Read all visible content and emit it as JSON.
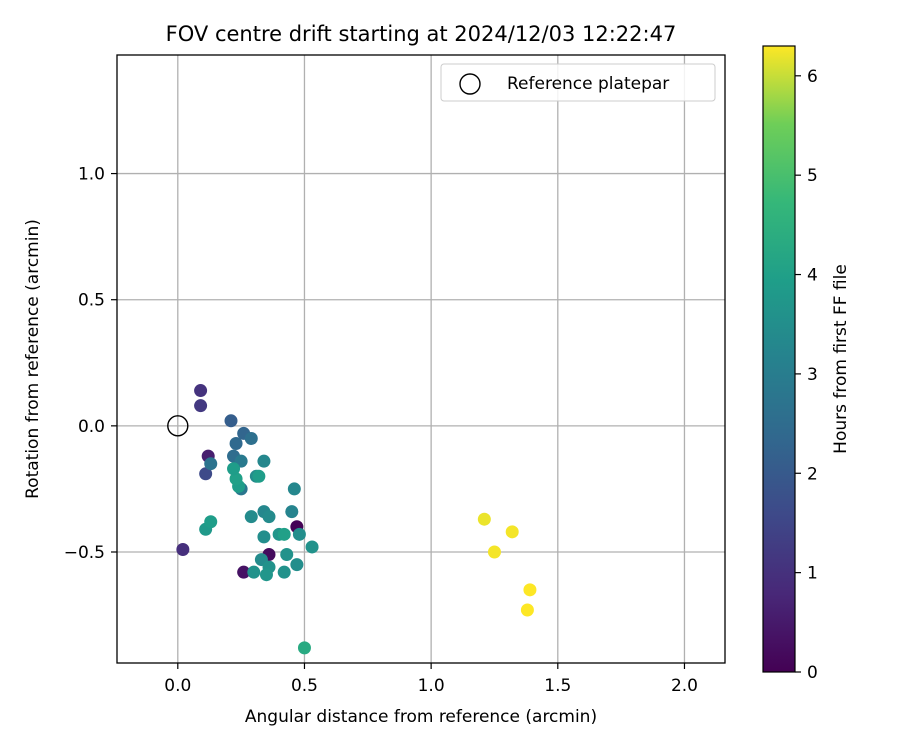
{
  "chart_data": {
    "type": "scatter",
    "title": "FOV centre drift starting at 2024/12/03 12:22:47",
    "xlabel": "Angular distance from reference (arcmin)",
    "ylabel": "Rotation from reference (arcmin)",
    "xlim": [
      -0.24,
      2.16
    ],
    "ylim": [
      -0.94,
      1.47
    ],
    "xticks": [
      0.0,
      0.5,
      1.0,
      1.5,
      2.0
    ],
    "xtick_labels": [
      "0.0",
      "0.5",
      "1.0",
      "1.5",
      "2.0"
    ],
    "yticks": [
      -0.5,
      0.0,
      0.5,
      1.0
    ],
    "ytick_labels": [
      "−0.5",
      "0.0",
      "0.5",
      "1.0"
    ],
    "grid": true,
    "colormap": "viridis",
    "colorbar": {
      "label": "Hours from first FF file",
      "range": [
        0,
        6.3
      ],
      "ticks": [
        0,
        1,
        2,
        3,
        4,
        5,
        6
      ],
      "tick_labels": [
        "0",
        "1",
        "2",
        "3",
        "4",
        "5",
        "6"
      ]
    },
    "legend": {
      "position": "top-right",
      "entries": [
        {
          "label": "Reference platepar",
          "marker": "open-circle"
        }
      ]
    },
    "reference_point": {
      "x": 0.0,
      "y": 0.0
    },
    "points": [
      {
        "x": 0.47,
        "y": -0.4,
        "hours": 0.05
      },
      {
        "x": 0.36,
        "y": -0.51,
        "hours": 0.2
      },
      {
        "x": 0.26,
        "y": -0.58,
        "hours": 0.35
      },
      {
        "x": 0.12,
        "y": -0.12,
        "hours": 0.6
      },
      {
        "x": 0.02,
        "y": -0.49,
        "hours": 0.95
      },
      {
        "x": 0.09,
        "y": 0.14,
        "hours": 1.05
      },
      {
        "x": 0.09,
        "y": 0.08,
        "hours": 1.2
      },
      {
        "x": 0.11,
        "y": -0.19,
        "hours": 1.6
      },
      {
        "x": 0.21,
        "y": 0.02,
        "hours": 2.1
      },
      {
        "x": 0.26,
        "y": -0.03,
        "hours": 2.3
      },
      {
        "x": 0.23,
        "y": -0.07,
        "hours": 2.4
      },
      {
        "x": 0.29,
        "y": -0.05,
        "hours": 2.6
      },
      {
        "x": 0.22,
        "y": -0.12,
        "hours": 2.5
      },
      {
        "x": 0.13,
        "y": -0.15,
        "hours": 2.7
      },
      {
        "x": 0.25,
        "y": -0.14,
        "hours": 2.9
      },
      {
        "x": 0.25,
        "y": -0.25,
        "hours": 2.8
      },
      {
        "x": 0.34,
        "y": -0.14,
        "hours": 3.3
      },
      {
        "x": 0.31,
        "y": -0.2,
        "hours": 3.4
      },
      {
        "x": 0.46,
        "y": -0.25,
        "hours": 3.3
      },
      {
        "x": 0.45,
        "y": -0.34,
        "hours": 3.2
      },
      {
        "x": 0.34,
        "y": -0.34,
        "hours": 3.3
      },
      {
        "x": 0.29,
        "y": -0.36,
        "hours": 3.4
      },
      {
        "x": 0.36,
        "y": -0.36,
        "hours": 3.4
      },
      {
        "x": 0.48,
        "y": -0.43,
        "hours": 3.5
      },
      {
        "x": 0.34,
        "y": -0.44,
        "hours": 3.5
      },
      {
        "x": 0.4,
        "y": -0.43,
        "hours": 3.7
      },
      {
        "x": 0.43,
        "y": -0.51,
        "hours": 3.6
      },
      {
        "x": 0.53,
        "y": -0.48,
        "hours": 3.6
      },
      {
        "x": 0.33,
        "y": -0.53,
        "hours": 3.4
      },
      {
        "x": 0.36,
        "y": -0.56,
        "hours": 3.6
      },
      {
        "x": 0.47,
        "y": -0.55,
        "hours": 3.5
      },
      {
        "x": 0.42,
        "y": -0.58,
        "hours": 3.6
      },
      {
        "x": 0.3,
        "y": -0.58,
        "hours": 3.6
      },
      {
        "x": 0.35,
        "y": -0.59,
        "hours": 3.7
      },
      {
        "x": 0.11,
        "y": -0.41,
        "hours": 3.8
      },
      {
        "x": 0.13,
        "y": -0.38,
        "hours": 3.9
      },
      {
        "x": 0.24,
        "y": -0.24,
        "hours": 3.9
      },
      {
        "x": 0.23,
        "y": -0.21,
        "hours": 4.0
      },
      {
        "x": 0.22,
        "y": -0.17,
        "hours": 3.9
      },
      {
        "x": 0.32,
        "y": -0.2,
        "hours": 3.9
      },
      {
        "x": 0.42,
        "y": -0.43,
        "hours": 4.0
      },
      {
        "x": 0.5,
        "y": -0.88,
        "hours": 4.3
      },
      {
        "x": 1.21,
        "y": -0.37,
        "hours": 6.2
      },
      {
        "x": 1.32,
        "y": -0.42,
        "hours": 6.25
      },
      {
        "x": 1.25,
        "y": -0.5,
        "hours": 6.25
      },
      {
        "x": 1.39,
        "y": -0.65,
        "hours": 6.3
      },
      {
        "x": 1.38,
        "y": -0.73,
        "hours": 6.3
      }
    ]
  }
}
